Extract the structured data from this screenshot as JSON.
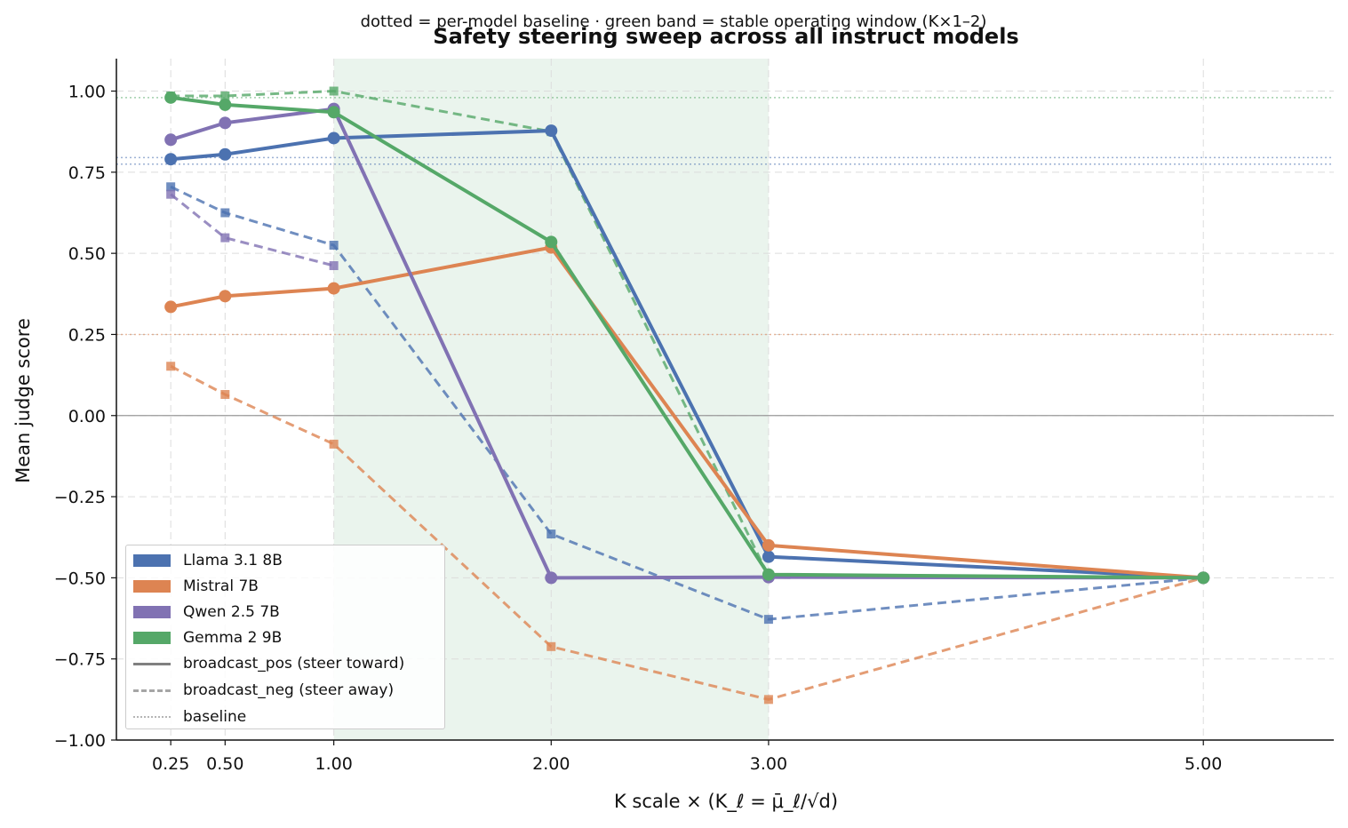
{
  "chart_data": {
    "type": "line",
    "title": "Safety steering sweep across all instruct models",
    "subtitle": "dotted = per-model baseline · green band = stable operating window (K×1–2)",
    "xlabel": "K scale  ×  (K_ℓ = μ̄_ℓ/√d)",
    "ylabel": "Mean judge score",
    "x": [
      0.25,
      0.5,
      1.0,
      2.0,
      3.0,
      5.0
    ],
    "x_tick_labels": [
      "0.25",
      "0.50",
      "1.00",
      "2.00",
      "3.00",
      "5.00"
    ],
    "y_ticks": [
      -1.0,
      -0.75,
      -0.5,
      -0.25,
      0.0,
      0.25,
      0.5,
      0.75,
      1.0
    ],
    "y_tick_labels": [
      "−1.00",
      "−0.75",
      "−0.50",
      "−0.25",
      "0.00",
      "0.25",
      "0.50",
      "0.75",
      "1.00"
    ],
    "xlim": [
      0.0,
      5.6
    ],
    "ylim": [
      -1.0,
      1.1
    ],
    "grid": true,
    "legend_position": "lower-left",
    "band": {
      "x0": 1.0,
      "x1": 3.0,
      "color": "#55a868"
    },
    "models": [
      {
        "name": "Llama 3.1 8B",
        "color": "#4c72b0",
        "baseline": [
          0.795,
          0.775
        ],
        "pos": [
          0.79,
          0.805,
          0.855,
          0.878,
          -0.435,
          -0.5
        ],
        "neg": [
          0.705,
          0.625,
          0.525,
          -0.365,
          -0.628,
          -0.5
        ]
      },
      {
        "name": "Mistral 7B",
        "color": "#dd8452",
        "baseline": [
          0.25
        ],
        "pos": [
          0.335,
          0.368,
          0.392,
          0.518,
          -0.4,
          -0.5
        ],
        "neg": [
          0.152,
          0.065,
          -0.088,
          -0.712,
          -0.875,
          -0.5
        ]
      },
      {
        "name": "Qwen 2.5 7B",
        "color": "#8172b3",
        "baseline": [],
        "pos": [
          0.85,
          0.902,
          0.945,
          -0.5,
          -0.498,
          -0.5
        ],
        "neg": [
          0.682,
          0.548,
          0.462,
          null,
          null,
          null
        ]
      },
      {
        "name": "Gemma 2 9B",
        "color": "#55a868",
        "baseline": [
          0.98
        ],
        "pos": [
          0.98,
          0.958,
          0.935,
          0.535,
          -0.49,
          -0.5
        ],
        "neg": [
          0.985,
          0.985,
          1.0,
          0.875,
          -0.495,
          -0.5
        ]
      }
    ],
    "legend_entries": [
      "Llama 3.1 8B",
      "Mistral 7B",
      "Qwen 2.5 7B",
      "Gemma 2 9B",
      "broadcast_pos (steer toward)",
      "broadcast_neg (steer away)",
      "baseline"
    ]
  }
}
